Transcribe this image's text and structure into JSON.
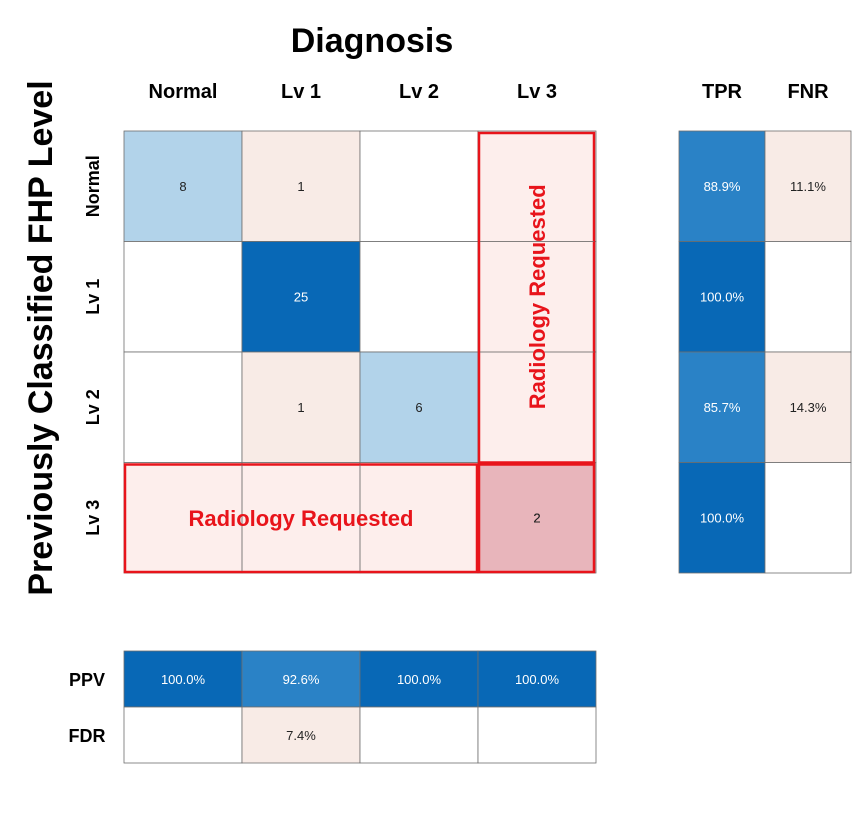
{
  "chart_data": {
    "type": "heatmap",
    "title": "Diagnosis",
    "ylabel": "Previously Classified FHP Level",
    "col_labels": [
      "Normal",
      "Lv 1",
      "Lv 2",
      "Lv 3"
    ],
    "row_labels": [
      "Normal",
      "Lv 1",
      "Lv 2",
      "Lv 3"
    ],
    "matrix": [
      [
        8,
        1,
        null,
        null
      ],
      [
        null,
        25,
        null,
        null
      ],
      [
        null,
        1,
        6,
        null
      ],
      [
        null,
        null,
        null,
        2
      ]
    ],
    "side_summary": {
      "headers": [
        "TPR",
        "FNR"
      ],
      "rows": [
        [
          "88.9%",
          "11.1%"
        ],
        [
          "100.0%",
          ""
        ],
        [
          "85.7%",
          "14.3%"
        ],
        [
          "100.0%",
          ""
        ]
      ]
    },
    "bottom_summary": {
      "labels": [
        "PPV",
        "FDR"
      ],
      "rows": [
        [
          "100.0%",
          "92.6%",
          "100.0%",
          "100.0%"
        ],
        [
          "",
          "7.4%",
          "",
          ""
        ]
      ]
    },
    "annotations": {
      "column_box_label": "Radiology Requested",
      "row_box_label": "Radiology Requested"
    }
  },
  "colors": {
    "dark_blue": "#0868b6",
    "mid_blue": "#2a82c6",
    "light_blue": "#b2d3ea",
    "light_pink": "#f8ebe6",
    "pink": "#fbe0dc",
    "overlap_pink": "#e8b5bb",
    "highlight_red": "#e8141b",
    "grid": "#6e6e6e"
  }
}
